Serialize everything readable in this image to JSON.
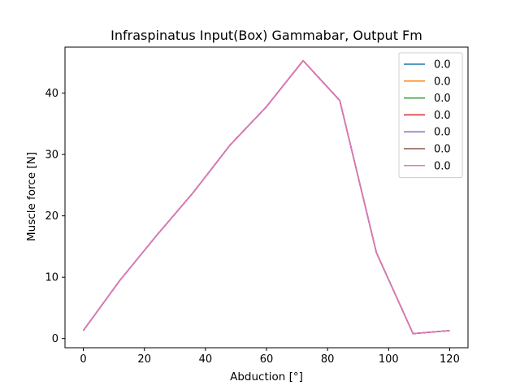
{
  "chart_data": {
    "type": "line",
    "title": "Infraspinatus Input(Box) Gammabar, Output Fm",
    "xlabel": "Abduction [°]",
    "ylabel": "Muscle force [N]",
    "xlim": [
      -6,
      126
    ],
    "ylim": [
      -1.5,
      47.5
    ],
    "xticks": [
      0,
      20,
      40,
      60,
      80,
      100,
      120
    ],
    "yticks": [
      0,
      10,
      20,
      30,
      40
    ],
    "grid": false,
    "legend_position": "top-right",
    "x": [
      0,
      12,
      24,
      36,
      48,
      60,
      72,
      84,
      96,
      108,
      120
    ],
    "series": [
      {
        "name": "0.0",
        "color": "#1f77b4",
        "values": [
          1.3,
          9.5,
          16.8,
          23.8,
          31.5,
          37.8,
          45.3,
          38.8,
          14.0,
          0.8,
          1.3
        ]
      },
      {
        "name": "0.0",
        "color": "#ff7f0e",
        "values": [
          1.3,
          9.5,
          16.8,
          23.8,
          31.5,
          37.8,
          45.3,
          38.8,
          14.0,
          0.8,
          1.3
        ]
      },
      {
        "name": "0.0",
        "color": "#2ca02c",
        "values": [
          1.3,
          9.5,
          16.8,
          23.8,
          31.5,
          37.8,
          45.3,
          38.8,
          14.0,
          0.8,
          1.3
        ]
      },
      {
        "name": "0.0",
        "color": "#d62728",
        "values": [
          1.3,
          9.5,
          16.8,
          23.8,
          31.5,
          37.8,
          45.3,
          38.8,
          14.0,
          0.8,
          1.3
        ]
      },
      {
        "name": "0.0",
        "color": "#9467bd",
        "values": [
          1.3,
          9.5,
          16.8,
          23.8,
          31.5,
          37.8,
          45.3,
          38.8,
          14.0,
          0.8,
          1.3
        ]
      },
      {
        "name": "0.0",
        "color": "#8c564b",
        "values": [
          1.3,
          9.5,
          16.8,
          23.8,
          31.5,
          37.8,
          45.3,
          38.8,
          14.0,
          0.8,
          1.3
        ]
      },
      {
        "name": "0.0",
        "color": "#e377c2",
        "values": [
          1.3,
          9.5,
          16.8,
          23.8,
          31.5,
          37.8,
          45.3,
          38.8,
          14.0,
          0.8,
          1.3
        ]
      }
    ]
  }
}
